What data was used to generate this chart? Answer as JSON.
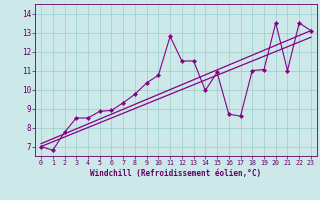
{
  "xlabel": "Windchill (Refroidissement éolien,°C)",
  "background_color": "#cce8e8",
  "line_color": "#880088",
  "grid_color": "#99cccc",
  "x_values": [
    0,
    1,
    2,
    3,
    4,
    5,
    6,
    7,
    8,
    9,
    10,
    11,
    12,
    13,
    14,
    15,
    16,
    17,
    18,
    19,
    20,
    21,
    22,
    23
  ],
  "series1": [
    7.0,
    6.8,
    7.75,
    8.5,
    8.5,
    8.85,
    8.9,
    9.3,
    9.75,
    10.35,
    10.75,
    12.8,
    11.5,
    11.5,
    9.95,
    10.9,
    8.7,
    8.6,
    11.0,
    11.05,
    13.5,
    11.0,
    13.5,
    13.1
  ],
  "trend1_x": [
    0,
    23
  ],
  "trend1_y": [
    7.15,
    13.1
  ],
  "trend2_x": [
    0,
    23
  ],
  "trend2_y": [
    7.0,
    12.75
  ],
  "ylim": [
    6.5,
    14.5
  ],
  "xlim": [
    -0.5,
    23.5
  ],
  "yticks": [
    7,
    8,
    9,
    10,
    11,
    12,
    13,
    14
  ],
  "xticks": [
    0,
    1,
    2,
    3,
    4,
    5,
    6,
    7,
    8,
    9,
    10,
    11,
    12,
    13,
    14,
    15,
    16,
    17,
    18,
    19,
    20,
    21,
    22,
    23
  ]
}
